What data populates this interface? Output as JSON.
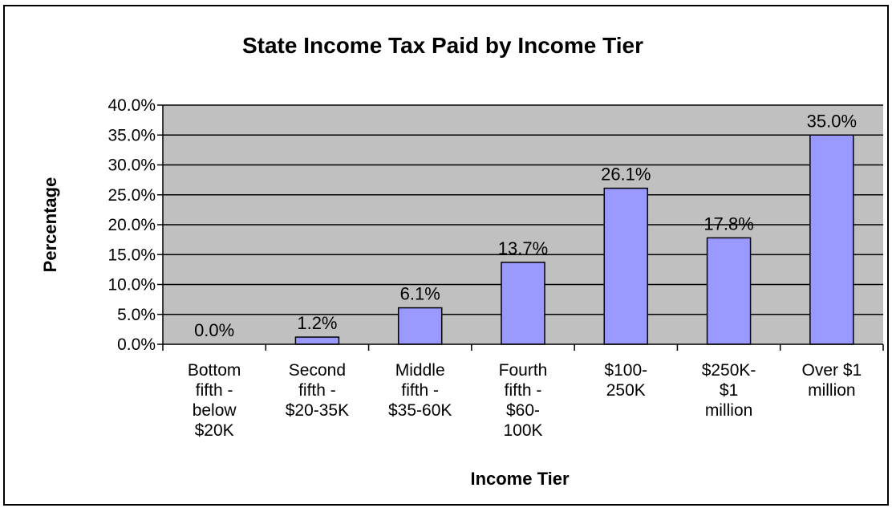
{
  "chart_data": {
    "type": "bar",
    "title": "State Income Tax Paid by Income Tier",
    "xlabel": "Income Tier",
    "ylabel": "Percentage",
    "ylim": [
      0,
      40
    ],
    "y_ticks": [
      "0.0%",
      "5.0%",
      "10.0%",
      "15.0%",
      "20.0%",
      "25.0%",
      "30.0%",
      "35.0%",
      "40.0%"
    ],
    "categories": [
      [
        "Bottom",
        "fifth -",
        "below",
        "$20K"
      ],
      [
        "Second",
        "fifth -",
        "$20-35K"
      ],
      [
        "Middle",
        "fifth -",
        "$35-60K"
      ],
      [
        "Fourth",
        "fifth -",
        "$60-",
        "100K"
      ],
      [
        "$100-",
        "250K"
      ],
      [
        "$250K-",
        "$1",
        "million"
      ],
      [
        "Over $1",
        "million"
      ]
    ],
    "values": [
      0.0,
      1.2,
      6.1,
      13.7,
      26.1,
      17.8,
      35.0
    ],
    "data_labels": [
      "0.0%",
      "1.2%",
      "6.1%",
      "13.7%",
      "26.1%",
      "17.8%",
      "35.0%"
    ],
    "grid": true,
    "legend": "none",
    "colors": {
      "bar_fill": "#9999ff",
      "plot_bg": "#c0c0c0",
      "grid": "#000000"
    }
  }
}
